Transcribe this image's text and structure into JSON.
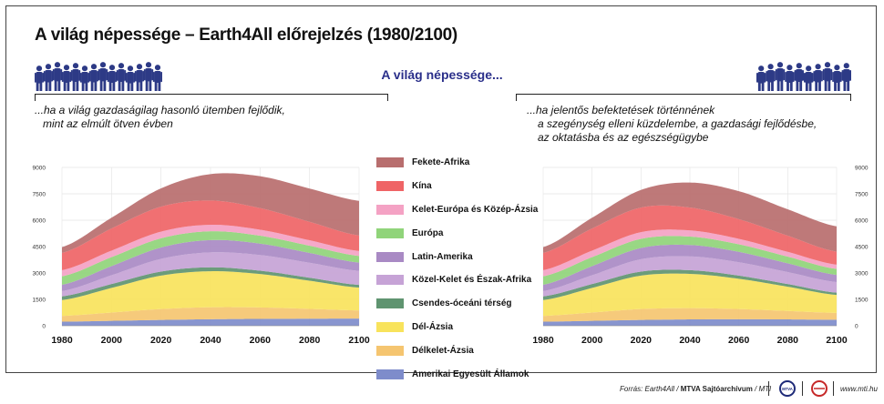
{
  "title": "A világ népessége – Earth4All előrejelzés (1980/2100)",
  "center_label": "A világ népessége...",
  "left_scenario": [
    "...ha a világ gazdaságilag hasonló ütemben fejlődik,",
    "mint az elmúlt ötven évben"
  ],
  "right_scenario": [
    "...ha jelentős befektetések történnének",
    "a szegénység elleni küzdelembe, a gazdasági fejlődésbe,",
    "az oktatásba és az egészségügybe"
  ],
  "footer": {
    "source_prefix": "Forrás: Earth4All / ",
    "source_bold": "MTVA Sajtóarchívum",
    "source_suffix": " / MTI",
    "logo1": "MTVA",
    "url": "www.mti.hu"
  },
  "legend": [
    {
      "label": "Fekete-Afrika",
      "color": "#b86e6e"
    },
    {
      "label": "Kína",
      "color": "#ef6466"
    },
    {
      "label": "Kelet-Európa és Közép-Ázsia",
      "color": "#f4a2c4"
    },
    {
      "label": "Európa",
      "color": "#90d47a"
    },
    {
      "label": "Latin-Amerika",
      "color": "#a98ac4"
    },
    {
      "label": "Közel-Kelet és Észak-Afrika",
      "color": "#c6a3d6"
    },
    {
      "label": "Csendes-óceáni térség",
      "color": "#5f9470"
    },
    {
      "label": "Dél-Ázsia",
      "color": "#f8e35c"
    },
    {
      "label": "Délkelet-Ázsia",
      "color": "#f5c570"
    },
    {
      "label": "Amerikai Egyesült Államok",
      "color": "#7e8ccb"
    }
  ],
  "chart_data": [
    {
      "type": "area",
      "stacked": true,
      "title": "...ha a világ gazdaságilag hasonló ütemben fejlődik, mint az elmúlt ötven évben",
      "x": [
        1980,
        2000,
        2020,
        2040,
        2060,
        2080,
        2100
      ],
      "xticks": [
        1980,
        2000,
        2020,
        2040,
        2060,
        2080,
        2100
      ],
      "yticks": [
        0,
        1500,
        3000,
        4500,
        6000,
        7500,
        9000
      ],
      "ylim": [
        0,
        9000
      ],
      "yaxis_side": "left",
      "grid": true,
      "series": [
        {
          "name": "Amerikai Egyesült Államok",
          "values": [
            230,
            280,
            330,
            370,
            390,
            400,
            410
          ]
        },
        {
          "name": "Délkelet-Ázsia",
          "values": [
            330,
            470,
            620,
            680,
            650,
            560,
            460
          ]
        },
        {
          "name": "Dél-Ázsia",
          "values": [
            900,
            1400,
            1900,
            2050,
            1900,
            1600,
            1300
          ]
        },
        {
          "name": "Csendes-óceáni térség",
          "values": [
            210,
            220,
            230,
            220,
            190,
            170,
            150
          ]
        },
        {
          "name": "Közel-Kelet és Észak-Afrika",
          "values": [
            300,
            500,
            720,
            850,
            890,
            850,
            800
          ]
        },
        {
          "name": "Latin-Amerika",
          "values": [
            360,
            520,
            650,
            700,
            650,
            560,
            470
          ]
        },
        {
          "name": "Európa",
          "values": [
            480,
            510,
            520,
            500,
            450,
            410,
            380
          ]
        },
        {
          "name": "Kelet-Európa és Közép-Ázsia",
          "values": [
            350,
            370,
            380,
            370,
            340,
            310,
            280
          ]
        },
        {
          "name": "Kína",
          "values": [
            980,
            1260,
            1420,
            1380,
            1230,
            1050,
            880
          ]
        },
        {
          "name": "Fekete-Afrika",
          "values": [
            330,
            610,
            1040,
            1500,
            1810,
            1890,
            1970
          ]
        }
      ]
    },
    {
      "type": "area",
      "stacked": true,
      "title": "...ha jelentős befektetések történnének a szegénység elleni küzdelembe, a gazdasági fejlődésbe, az oktatásba és az egészségügybe",
      "x": [
        1980,
        2000,
        2020,
        2040,
        2060,
        2080,
        2100
      ],
      "xticks": [
        1980,
        2000,
        2020,
        2040,
        2060,
        2080,
        2100
      ],
      "yticks": [
        0,
        1500,
        3000,
        4500,
        6000,
        7500,
        9000
      ],
      "ylim": [
        0,
        9000
      ],
      "yaxis_side": "right",
      "grid": true,
      "series": [
        {
          "name": "Amerikai Egyesült Államok",
          "values": [
            230,
            280,
            330,
            360,
            370,
            360,
            340
          ]
        },
        {
          "name": "Délkelet-Ázsia",
          "values": [
            330,
            470,
            620,
            640,
            580,
            480,
            390
          ]
        },
        {
          "name": "Dél-Ázsia",
          "values": [
            900,
            1400,
            1900,
            1950,
            1720,
            1380,
            1020
          ]
        },
        {
          "name": "Csendes-óceáni térség",
          "values": [
            210,
            220,
            230,
            210,
            180,
            150,
            130
          ]
        },
        {
          "name": "Közel-Kelet és Észak-Afrika",
          "values": [
            300,
            500,
            700,
            780,
            760,
            680,
            600
          ]
        },
        {
          "name": "Latin-Amerika",
          "values": [
            360,
            520,
            640,
            650,
            590,
            500,
            410
          ]
        },
        {
          "name": "Európa",
          "values": [
            480,
            510,
            520,
            480,
            430,
            380,
            340
          ]
        },
        {
          "name": "Kelet-Európa és Közép-Ázsia",
          "values": [
            350,
            370,
            380,
            350,
            310,
            270,
            240
          ]
        },
        {
          "name": "Kína",
          "values": [
            980,
            1260,
            1400,
            1300,
            1120,
            920,
            740
          ]
        },
        {
          "name": "Fekete-Afrika",
          "values": [
            330,
            610,
            1000,
            1420,
            1590,
            1500,
            1440
          ]
        }
      ]
    }
  ]
}
